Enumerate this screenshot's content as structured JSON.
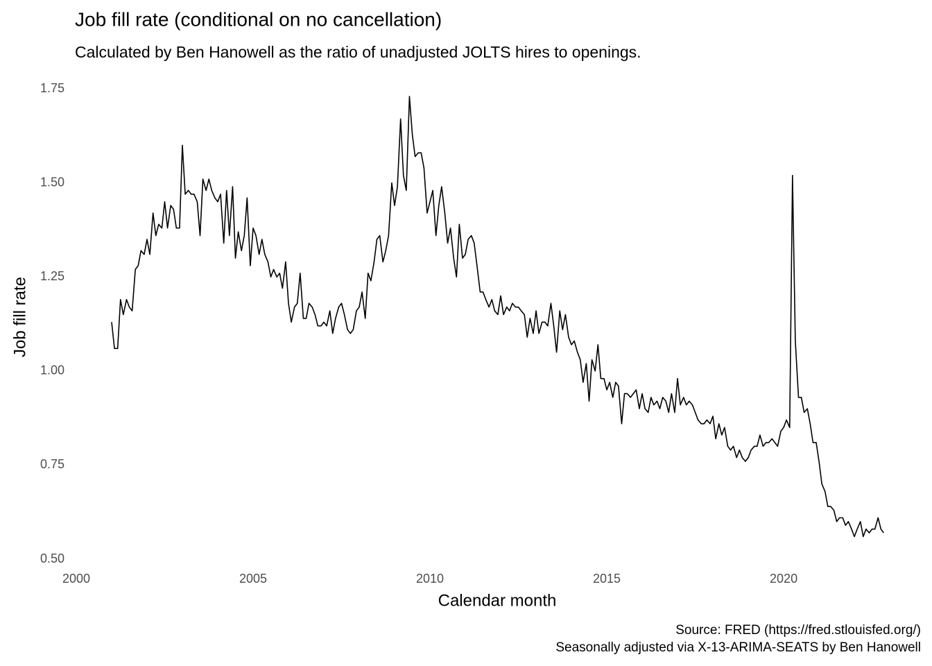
{
  "chart_data": {
    "type": "line",
    "title": "Job fill rate (conditional on no cancellation)",
    "subtitle": "Calculated by Ben Hanowell as the ratio of unadjusted JOLTS hires to openings.",
    "x_label": "Calendar month",
    "y_label": "Job fill rate",
    "caption": [
      "Source: FRED (https://fred.stlouisfed.org/)",
      "Seasonally adjusted via X-13-ARIMA-SEATS by Ben Hanowell"
    ],
    "xlim": [
      1999.91,
      2023.92
    ],
    "xticks": [
      2000,
      2005,
      2010,
      2015,
      2020
    ],
    "ylim": [
      0.496,
      1.794
    ],
    "yticks": [
      {
        "value": 0.5,
        "label": "0.50"
      },
      0.75,
      {
        "value": 1,
        "label": "1.00"
      },
      1.25,
      {
        "value": 1.5,
        "label": "1.50"
      },
      1.75
    ],
    "grid": false,
    "x": [
      2001,
      2001.08,
      2001.17,
      2001.25,
      2001.33,
      2001.42,
      2001.5,
      2001.58,
      2001.67,
      2001.75,
      2001.83,
      2001.92,
      2002,
      2002.08,
      2002.17,
      2002.25,
      2002.33,
      2002.42,
      2002.5,
      2002.58,
      2002.67,
      2002.75,
      2002.83,
      2002.92,
      2003,
      2003.08,
      2003.17,
      2003.25,
      2003.33,
      2003.42,
      2003.5,
      2003.58,
      2003.67,
      2003.75,
      2003.83,
      2003.92,
      2004,
      2004.08,
      2004.17,
      2004.25,
      2004.33,
      2004.42,
      2004.5,
      2004.58,
      2004.67,
      2004.75,
      2004.83,
      2004.92,
      2005,
      2005.08,
      2005.17,
      2005.25,
      2005.33,
      2005.42,
      2005.5,
      2005.58,
      2005.67,
      2005.75,
      2005.83,
      2005.92,
      2006,
      2006.08,
      2006.17,
      2006.25,
      2006.33,
      2006.42,
      2006.5,
      2006.58,
      2006.67,
      2006.75,
      2006.83,
      2006.92,
      2007,
      2007.08,
      2007.17,
      2007.25,
      2007.33,
      2007.42,
      2007.5,
      2007.58,
      2007.67,
      2007.75,
      2007.83,
      2007.92,
      2008,
      2008.08,
      2008.17,
      2008.25,
      2008.33,
      2008.42,
      2008.5,
      2008.58,
      2008.67,
      2008.75,
      2008.83,
      2008.92,
      2009,
      2009.08,
      2009.17,
      2009.25,
      2009.33,
      2009.42,
      2009.5,
      2009.58,
      2009.67,
      2009.75,
      2009.83,
      2009.92,
      2010,
      2010.08,
      2010.17,
      2010.25,
      2010.33,
      2010.42,
      2010.5,
      2010.58,
      2010.67,
      2010.75,
      2010.83,
      2010.92,
      2011,
      2011.08,
      2011.17,
      2011.25,
      2011.33,
      2011.42,
      2011.5,
      2011.58,
      2011.67,
      2011.75,
      2011.83,
      2011.92,
      2012,
      2012.08,
      2012.17,
      2012.25,
      2012.33,
      2012.42,
      2012.5,
      2012.58,
      2012.67,
      2012.75,
      2012.83,
      2012.92,
      2013,
      2013.08,
      2013.17,
      2013.25,
      2013.33,
      2013.42,
      2013.5,
      2013.58,
      2013.67,
      2013.75,
      2013.83,
      2013.92,
      2014,
      2014.08,
      2014.17,
      2014.25,
      2014.33,
      2014.42,
      2014.5,
      2014.58,
      2014.67,
      2014.75,
      2014.83,
      2014.92,
      2015,
      2015.08,
      2015.17,
      2015.25,
      2015.33,
      2015.42,
      2015.5,
      2015.58,
      2015.67,
      2015.75,
      2015.83,
      2015.92,
      2016,
      2016.08,
      2016.17,
      2016.25,
      2016.33,
      2016.42,
      2016.5,
      2016.58,
      2016.67,
      2016.75,
      2016.83,
      2016.92,
      2017,
      2017.08,
      2017.17,
      2017.25,
      2017.33,
      2017.42,
      2017.5,
      2017.58,
      2017.67,
      2017.75,
      2017.83,
      2017.92,
      2018,
      2018.08,
      2018.17,
      2018.25,
      2018.33,
      2018.42,
      2018.5,
      2018.58,
      2018.67,
      2018.75,
      2018.83,
      2018.92,
      2019,
      2019.08,
      2019.17,
      2019.25,
      2019.33,
      2019.42,
      2019.5,
      2019.58,
      2019.67,
      2019.75,
      2019.83,
      2019.92,
      2020,
      2020.08,
      2020.17,
      2020.25,
      2020.33,
      2020.42,
      2020.5,
      2020.58,
      2020.67,
      2020.75,
      2020.83,
      2020.92,
      2021,
      2021.08,
      2021.17,
      2021.25,
      2021.33,
      2021.42,
      2021.5,
      2021.58,
      2021.67,
      2021.75,
      2021.83,
      2021.92,
      2022,
      2022.08,
      2022.17,
      2022.25,
      2022.33,
      2022.42,
      2022.5,
      2022.58,
      2022.67,
      2022.75,
      2022.83
    ],
    "series": [
      {
        "color": "#000000",
        "values": [
          1.13,
          1.06,
          1.06,
          1.19,
          1.15,
          1.19,
          1.17,
          1.16,
          1.27,
          1.28,
          1.32,
          1.31,
          1.35,
          1.31,
          1.42,
          1.36,
          1.39,
          1.38,
          1.45,
          1.38,
          1.44,
          1.43,
          1.38,
          1.38,
          1.6,
          1.47,
          1.48,
          1.47,
          1.47,
          1.45,
          1.36,
          1.51,
          1.48,
          1.51,
          1.48,
          1.46,
          1.45,
          1.47,
          1.34,
          1.48,
          1.36,
          1.49,
          1.3,
          1.37,
          1.32,
          1.36,
          1.46,
          1.28,
          1.38,
          1.36,
          1.31,
          1.35,
          1.31,
          1.29,
          1.25,
          1.27,
          1.25,
          1.26,
          1.22,
          1.29,
          1.18,
          1.13,
          1.17,
          1.18,
          1.26,
          1.14,
          1.14,
          1.18,
          1.17,
          1.15,
          1.12,
          1.12,
          1.13,
          1.12,
          1.16,
          1.1,
          1.14,
          1.17,
          1.18,
          1.15,
          1.11,
          1.1,
          1.11,
          1.16,
          1.17,
          1.21,
          1.14,
          1.26,
          1.24,
          1.29,
          1.35,
          1.36,
          1.29,
          1.32,
          1.36,
          1.5,
          1.44,
          1.49,
          1.67,
          1.52,
          1.48,
          1.73,
          1.63,
          1.57,
          1.58,
          1.58,
          1.54,
          1.42,
          1.45,
          1.48,
          1.36,
          1.44,
          1.49,
          1.42,
          1.34,
          1.38,
          1.3,
          1.25,
          1.39,
          1.3,
          1.31,
          1.35,
          1.36,
          1.34,
          1.28,
          1.21,
          1.21,
          1.19,
          1.17,
          1.19,
          1.16,
          1.15,
          1.2,
          1.15,
          1.17,
          1.16,
          1.18,
          1.17,
          1.17,
          1.16,
          1.15,
          1.09,
          1.14,
          1.1,
          1.16,
          1.1,
          1.13,
          1.13,
          1.12,
          1.18,
          1.12,
          1.05,
          1.16,
          1.11,
          1.15,
          1.09,
          1.07,
          1.08,
          1.05,
          1.03,
          0.97,
          1.02,
          0.92,
          1.03,
          1.0,
          1.07,
          0.98,
          0.98,
          0.95,
          0.97,
          0.93,
          0.97,
          0.96,
          0.86,
          0.94,
          0.94,
          0.93,
          0.94,
          0.95,
          0.9,
          0.94,
          0.9,
          0.89,
          0.93,
          0.91,
          0.92,
          0.9,
          0.93,
          0.92,
          0.89,
          0.94,
          0.89,
          0.98,
          0.91,
          0.93,
          0.91,
          0.92,
          0.91,
          0.89,
          0.87,
          0.86,
          0.86,
          0.87,
          0.86,
          0.88,
          0.82,
          0.86,
          0.83,
          0.85,
          0.8,
          0.79,
          0.8,
          0.77,
          0.79,
          0.77,
          0.76,
          0.77,
          0.79,
          0.8,
          0.8,
          0.83,
          0.8,
          0.81,
          0.81,
          0.82,
          0.81,
          0.8,
          0.84,
          0.85,
          0.87,
          0.85,
          1.52,
          1.08,
          0.93,
          0.93,
          0.89,
          0.9,
          0.86,
          0.81,
          0.81,
          0.76,
          0.7,
          0.68,
          0.64,
          0.64,
          0.63,
          0.6,
          0.61,
          0.61,
          0.59,
          0.6,
          0.58,
          0.56,
          0.58,
          0.6,
          0.56,
          0.58,
          0.57,
          0.58,
          0.58,
          0.61,
          0.58,
          0.57
        ]
      }
    ]
  }
}
